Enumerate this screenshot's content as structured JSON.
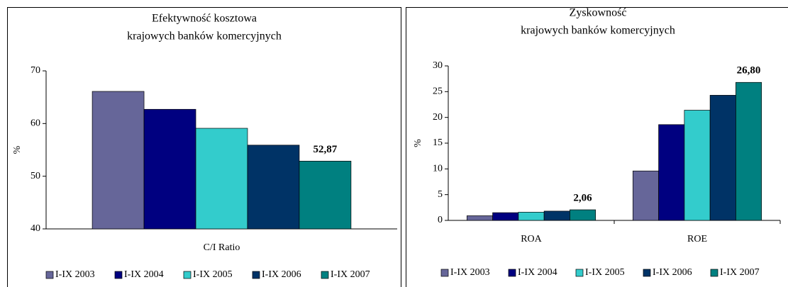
{
  "chart_data": [
    {
      "type": "bar",
      "title": [
        "Efektywność kosztowa",
        "krajowych banków komercyjnych"
      ],
      "y_label": "%",
      "categories": [
        "C/I Ratio"
      ],
      "ylim": [
        40,
        70
      ],
      "yticks": [
        40,
        50,
        60,
        70
      ],
      "series": [
        {
          "name": "I-IX 2003",
          "color": "#666699",
          "values": [
            66.1
          ]
        },
        {
          "name": "I-IX 2004",
          "color": "#000080",
          "values": [
            62.7
          ]
        },
        {
          "name": "I-IX 2005",
          "color": "#33CCCC",
          "values": [
            59.1
          ]
        },
        {
          "name": "I-IX 2006",
          "color": "#003366",
          "values": [
            55.9
          ]
        },
        {
          "name": "I-IX 2007",
          "color": "#008080",
          "values": [
            52.87
          ],
          "value_labels": [
            "52,87"
          ]
        }
      ]
    },
    {
      "type": "bar",
      "title": [
        "Zyskowność",
        "krajowych banków komercyjnych"
      ],
      "y_label": "%",
      "categories": [
        "ROA",
        "ROE"
      ],
      "ylim": [
        0,
        30
      ],
      "yticks": [
        0,
        5,
        10,
        15,
        20,
        25,
        30
      ],
      "series": [
        {
          "name": "I-IX 2003",
          "color": "#666699",
          "values": [
            0.9,
            9.6
          ]
        },
        {
          "name": "I-IX 2004",
          "color": "#000080",
          "values": [
            1.5,
            18.6
          ]
        },
        {
          "name": "I-IX 2005",
          "color": "#33CCCC",
          "values": [
            1.6,
            21.4
          ]
        },
        {
          "name": "I-IX 2006",
          "color": "#003366",
          "values": [
            1.8,
            24.3
          ]
        },
        {
          "name": "I-IX 2007",
          "color": "#008080",
          "values": [
            2.06,
            26.8
          ],
          "value_labels": [
            "2,06",
            "26,80"
          ]
        }
      ]
    }
  ]
}
